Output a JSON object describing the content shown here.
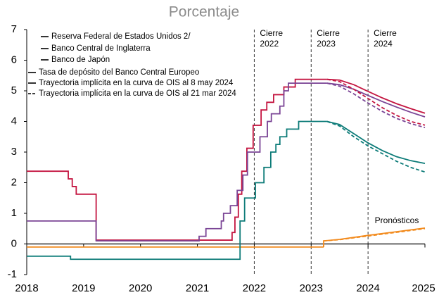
{
  "chart_data": {
    "type": "line",
    "title": "Porcentaje",
    "xlim": [
      2018,
      2025
    ],
    "xticks": [
      2018,
      2019,
      2020,
      2021,
      2022,
      2023,
      2024,
      2025
    ],
    "ylim": [
      -1,
      7
    ],
    "yticks": [
      -1,
      0,
      1,
      2,
      3,
      4,
      5,
      6,
      7
    ],
    "grid": false,
    "series": [
      {
        "name": "Reserva Federal de Estados Unidos 2/",
        "color": "#c41540",
        "x": [
          2018,
          2018.73,
          2018.73,
          2018.8,
          2018.8,
          2018.87,
          2018.87,
          2019.22,
          2019.22,
          2021.61,
          2021.61,
          2021.66,
          2021.66,
          2021.72,
          2021.72,
          2021.78,
          2021.78,
          2021.87,
          2021.87,
          2021.98,
          2021.98,
          2022.12,
          2022.12,
          2022.22,
          2022.22,
          2022.34,
          2022.34,
          2022.52,
          2022.52,
          2022.72,
          2022.72,
          2023.28
        ],
        "values": [
          2.375,
          2.375,
          2.125,
          2.125,
          1.875,
          1.875,
          1.625,
          1.625,
          0.125,
          0.125,
          0.375,
          0.375,
          0.875,
          0.875,
          1.625,
          1.625,
          2.375,
          2.375,
          3.125,
          3.125,
          3.875,
          3.875,
          4.375,
          4.375,
          4.625,
          4.625,
          4.875,
          4.875,
          5.125,
          5.125,
          5.375,
          5.375
        ]
      },
      {
        "name": "Banco Central de Inglaterra",
        "color": "#7a4495",
        "x": [
          2018,
          2019.22,
          2019.22,
          2021.03,
          2021.03,
          2021.15,
          2021.15,
          2021.42,
          2021.42,
          2021.46,
          2021.46,
          2021.58,
          2021.58,
          2021.7,
          2021.7,
          2021.8,
          2021.8,
          2021.88,
          2021.88,
          2022.1,
          2022.1,
          2022.23,
          2022.23,
          2022.3,
          2022.3,
          2022.45,
          2022.45,
          2022.52,
          2022.52,
          2022.6,
          2022.6,
          2023.28
        ],
        "values": [
          0.75,
          0.75,
          0.1,
          0.1,
          0.25,
          0.25,
          0.5,
          0.5,
          0.75,
          0.75,
          1,
          1,
          1.25,
          1.25,
          1.75,
          1.75,
          2.25,
          2.25,
          3,
          3,
          3.5,
          3.5,
          4,
          4,
          4.25,
          4.25,
          4.5,
          4.5,
          5,
          5,
          5.25,
          5.25
        ]
      },
      {
        "name": "Banco de Japón",
        "color": "#f28a1c",
        "x": [
          2018,
          2023.22
        ],
        "values": [
          -0.1,
          -0.1
        ]
      },
      {
        "name": "Tasa de depósito del Banco Central Europeo",
        "color": "#0c7b78",
        "x": [
          2018,
          2018.77,
          2018.77,
          2021.75,
          2021.75,
          2021.83,
          2021.83,
          2022.02,
          2022.02,
          2022.17,
          2022.17,
          2022.29,
          2022.29,
          2022.38,
          2022.38,
          2022.45,
          2022.45,
          2022.57,
          2022.57,
          2022.78,
          2022.78,
          2023.28
        ],
        "values": [
          -0.4,
          -0.4,
          -0.5,
          -0.5,
          0.75,
          0.75,
          1.5,
          1.5,
          2,
          2,
          2.5,
          2.5,
          3,
          3,
          3.25,
          3.25,
          3.5,
          3.5,
          3.75,
          3.75,
          4,
          4
        ]
      }
    ],
    "paths": [
      {
        "name": "Trayectoria implícita en la curva de OIS al 8 may 2024",
        "dashed": false,
        "lines": [
          {
            "x": [
              2023.28,
              2023.5,
              2023.75,
              2024,
              2024.25,
              2024.5,
              2024.75,
              2025
            ],
            "values": [
              5.375,
              5.35,
              5.2,
              4.98,
              4.77,
              4.58,
              4.42,
              4.27
            ]
          },
          {
            "x": [
              2023.28,
              2023.5,
              2023.75,
              2024,
              2024.25,
              2024.5,
              2024.75,
              2025
            ],
            "values": [
              5.25,
              5.2,
              5.05,
              4.85,
              4.65,
              4.47,
              4.3,
              4.15
            ]
          },
          {
            "x": [
              2023.22,
              2023.22,
              2023.5,
              2024,
              2024.5,
              2025
            ],
            "values": [
              -0.1,
              0.1,
              0.15,
              0.28,
              0.4,
              0.52
            ]
          },
          {
            "x": [
              2023.28,
              2023.5,
              2023.75,
              2024,
              2024.25,
              2024.5,
              2024.75,
              2025
            ],
            "values": [
              4,
              3.9,
              3.6,
              3.3,
              3.05,
              2.85,
              2.72,
              2.63
            ]
          }
        ]
      },
      {
        "name": "Trayectoria implícita en la curva de OIS al 21 mar 2024",
        "dashed": true,
        "lines": [
          {
            "x": [
              2023.28,
              2023.5,
              2023.75,
              2024,
              2024.25,
              2024.5,
              2024.75,
              2025
            ],
            "values": [
              5.375,
              5.3,
              5.05,
              4.75,
              4.45,
              4.2,
              4,
              3.88
            ]
          },
          {
            "x": [
              2023.28,
              2023.5,
              2023.75,
              2024,
              2024.25,
              2024.5,
              2024.75,
              2025
            ],
            "values": [
              5.25,
              5.15,
              4.9,
              4.6,
              4.33,
              4.1,
              3.93,
              3.8
            ]
          },
          {
            "x": [
              2023.22,
              2023.22,
              2023.5,
              2024,
              2024.5,
              2025
            ],
            "values": [
              -0.1,
              0.1,
              0.14,
              0.26,
              0.38,
              0.5
            ]
          },
          {
            "x": [
              2023.28,
              2023.5,
              2023.75,
              2024,
              2024.25,
              2024.5,
              2024.75,
              2025
            ],
            "values": [
              4,
              3.85,
              3.5,
              3.2,
              2.95,
              2.7,
              2.5,
              2.35
            ]
          }
        ]
      }
    ],
    "vlines": [
      {
        "x": 2022,
        "label": [
          "Cierre",
          "2022"
        ]
      },
      {
        "x": 2023,
        "label": [
          "Cierre",
          "2023"
        ]
      },
      {
        "x": 2024,
        "label": [
          "Cierre",
          "2024"
        ]
      }
    ],
    "annotation": "Pronósticos"
  }
}
